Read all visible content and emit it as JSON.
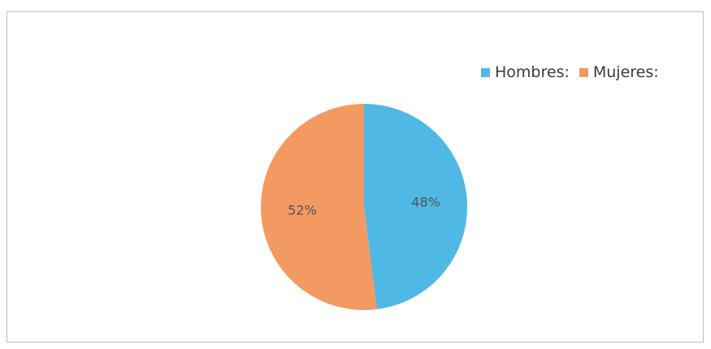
{
  "chart_data": {
    "type": "pie",
    "title": "",
    "categories": [
      "Hombres:",
      "Mujeres:"
    ],
    "values": [
      48,
      52
    ],
    "data_labels": [
      "48%",
      "52%"
    ],
    "colors": [
      "#4fb8e4",
      "#f29a62"
    ],
    "legend_position": "top-right",
    "start_angle_deg": 0,
    "direction": "clockwise"
  }
}
